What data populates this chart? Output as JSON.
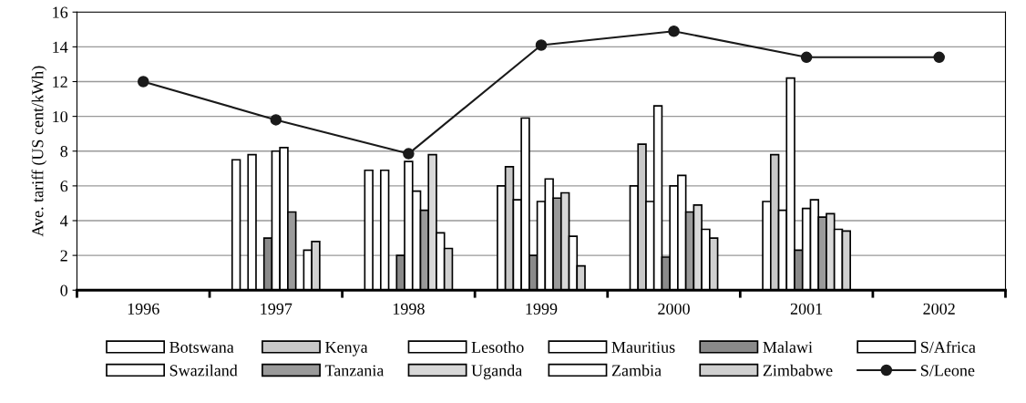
{
  "chart_data": {
    "type": "bar",
    "ylabel": "Ave. tariff (US cent/kWh)",
    "categories": [
      "1996",
      "1997",
      "1998",
      "1999",
      "2000",
      "2001",
      "2002"
    ],
    "ylim": [
      0,
      16
    ],
    "yticks": [
      0,
      2,
      4,
      6,
      8,
      10,
      12,
      14,
      16
    ],
    "grid": "y",
    "legend": "bottom",
    "series": [
      {
        "name": "Botswana",
        "color": "#ffffff",
        "values": [
          null,
          7.5,
          6.9,
          6.0,
          6.0,
          5.1,
          null
        ]
      },
      {
        "name": "Kenya",
        "color": "#c8c8c8",
        "values": [
          null,
          null,
          null,
          7.1,
          8.4,
          7.8,
          null
        ]
      },
      {
        "name": "Lesotho",
        "color": "#ffffff",
        "values": [
          null,
          7.8,
          6.9,
          5.2,
          5.1,
          4.6,
          null
        ]
      },
      {
        "name": "Mauritius",
        "color": "#ffffff",
        "values": [
          null,
          null,
          null,
          9.9,
          10.6,
          12.2,
          null
        ]
      },
      {
        "name": "Malawi",
        "color": "#8a8a8a",
        "values": [
          null,
          3.0,
          2.0,
          2.0,
          1.9,
          2.3,
          null
        ]
      },
      {
        "name": "S/Africa",
        "color": "#ffffff",
        "values": [
          null,
          8.0,
          7.4,
          5.1,
          6.0,
          4.7,
          null
        ]
      },
      {
        "name": "Swaziland",
        "color": "#ffffff",
        "values": [
          null,
          8.2,
          5.7,
          6.4,
          6.6,
          5.2,
          null
        ]
      },
      {
        "name": "Tanzania",
        "color": "#9a9a9a",
        "values": [
          null,
          4.5,
          4.6,
          5.3,
          4.5,
          4.2,
          null
        ]
      },
      {
        "name": "Uganda",
        "color": "#d8d8d8",
        "values": [
          null,
          null,
          7.8,
          5.6,
          4.9,
          4.4,
          null
        ]
      },
      {
        "name": "Zambia",
        "color": "#ffffff",
        "values": [
          null,
          2.3,
          3.3,
          3.1,
          3.5,
          3.5,
          null
        ]
      },
      {
        "name": "Zimbabwe",
        "color": "#d0d0d0",
        "values": [
          null,
          2.8,
          2.4,
          1.4,
          3.0,
          3.4,
          null
        ]
      },
      {
        "name": "S/Leone",
        "type": "line",
        "color": "#1a1a1a",
        "marker": "circle",
        "line_style": "solid",
        "values": [
          12.0,
          9.8,
          7.85,
          14.1,
          14.9,
          13.4,
          13.4
        ]
      }
    ]
  }
}
